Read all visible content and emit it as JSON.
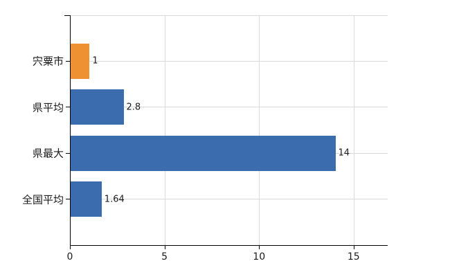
{
  "chart_data": {
    "type": "bar",
    "orientation": "horizontal",
    "categories": [
      "宍粟市",
      "県平均",
      "県最大",
      "全国平均"
    ],
    "values": [
      1,
      2.8,
      14,
      1.64
    ],
    "value_labels": [
      "1",
      "2.8",
      "14",
      "1.64"
    ],
    "bar_colors": [
      "#EE9133",
      "#3B6CAE",
      "#3B6CAE",
      "#3B6CAE"
    ],
    "xticks": [
      0,
      5,
      10,
      15
    ],
    "xtick_labels": [
      "0",
      "5",
      "10",
      "15"
    ],
    "xlim": [
      0,
      16.8
    ],
    "grid": true,
    "gridline_color": "#D9D9D9",
    "axis_color": "#000000",
    "text_color": "#1a1a1a",
    "background": "#FFFFFF",
    "legend_position": "none"
  }
}
